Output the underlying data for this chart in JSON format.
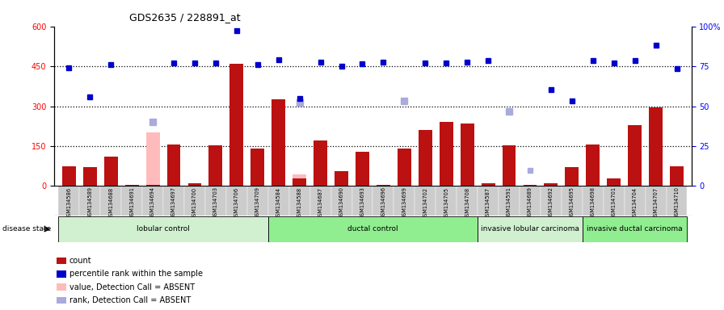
{
  "title": "GDS2635 / 228891_at",
  "samples": [
    "GSM134586",
    "GSM134589",
    "GSM134688",
    "GSM134691",
    "GSM134694",
    "GSM134697",
    "GSM134700",
    "GSM134703",
    "GSM134706",
    "GSM134709",
    "GSM134584",
    "GSM134588",
    "GSM134687",
    "GSM134690",
    "GSM134693",
    "GSM134696",
    "GSM134699",
    "GSM134702",
    "GSM134705",
    "GSM134708",
    "GSM134587",
    "GSM134591",
    "GSM134689",
    "GSM134692",
    "GSM134695",
    "GSM134698",
    "GSM134701",
    "GSM134704",
    "GSM134707",
    "GSM134710"
  ],
  "count": [
    75,
    70,
    110,
    5,
    5,
    155,
    10,
    152,
    460,
    140,
    325,
    30,
    170,
    55,
    130,
    5,
    140,
    210,
    240,
    235,
    10,
    152,
    5,
    10,
    70,
    155,
    30,
    230,
    295,
    75
  ],
  "rank": [
    445,
    335,
    455,
    null,
    null,
    462,
    462,
    462,
    583,
    455,
    476,
    330,
    465,
    450,
    460,
    465,
    null,
    462,
    462,
    465,
    470,
    null,
    null,
    362,
    320,
    470,
    462,
    470,
    530,
    440
  ],
  "absent_count": [
    null,
    null,
    null,
    null,
    200,
    null,
    null,
    null,
    null,
    null,
    null,
    45,
    null,
    null,
    null,
    null,
    45,
    null,
    null,
    null,
    null,
    45,
    null,
    null,
    null,
    null,
    null,
    null,
    null,
    null
  ],
  "absent_rank": [
    null,
    null,
    null,
    null,
    null,
    null,
    null,
    null,
    null,
    null,
    null,
    null,
    null,
    null,
    null,
    null,
    null,
    null,
    null,
    null,
    null,
    null,
    60,
    null,
    null,
    null,
    null,
    null,
    null,
    null
  ],
  "absent_rank_2": [
    null,
    null,
    null,
    null,
    240,
    null,
    null,
    null,
    null,
    null,
    null,
    315,
    null,
    null,
    null,
    null,
    320,
    null,
    null,
    null,
    null,
    280,
    null,
    null,
    null,
    null,
    null,
    null,
    null,
    null
  ],
  "groups": [
    {
      "label": "lobular control",
      "start": 0,
      "end": 10,
      "color": "#d0f0d0"
    },
    {
      "label": "ductal control",
      "start": 10,
      "end": 20,
      "color": "#90ee90"
    },
    {
      "label": "invasive lobular carcinoma",
      "start": 20,
      "end": 25,
      "color": "#d0f0d0"
    },
    {
      "label": "invasive ductal carcinoma",
      "start": 25,
      "end": 30,
      "color": "#90ee90"
    }
  ],
  "ylim": [
    0,
    600
  ],
  "yticks": [
    0,
    150,
    300,
    450,
    600
  ],
  "yticks_right": [
    "0",
    "25",
    "50",
    "75",
    "100%"
  ],
  "dotted_lines": [
    150,
    300,
    450
  ],
  "bar_color": "#bb1111",
  "rank_color": "#0000cc",
  "absent_count_color": "#ffbbbb",
  "absent_rank_color": "#aaaadd",
  "legend_labels": [
    "count",
    "percentile rank within the sample",
    "value, Detection Call = ABSENT",
    "rank, Detection Call = ABSENT"
  ],
  "legend_colors": [
    "#bb1111",
    "#0000cc",
    "#ffbbbb",
    "#aaaadd"
  ]
}
